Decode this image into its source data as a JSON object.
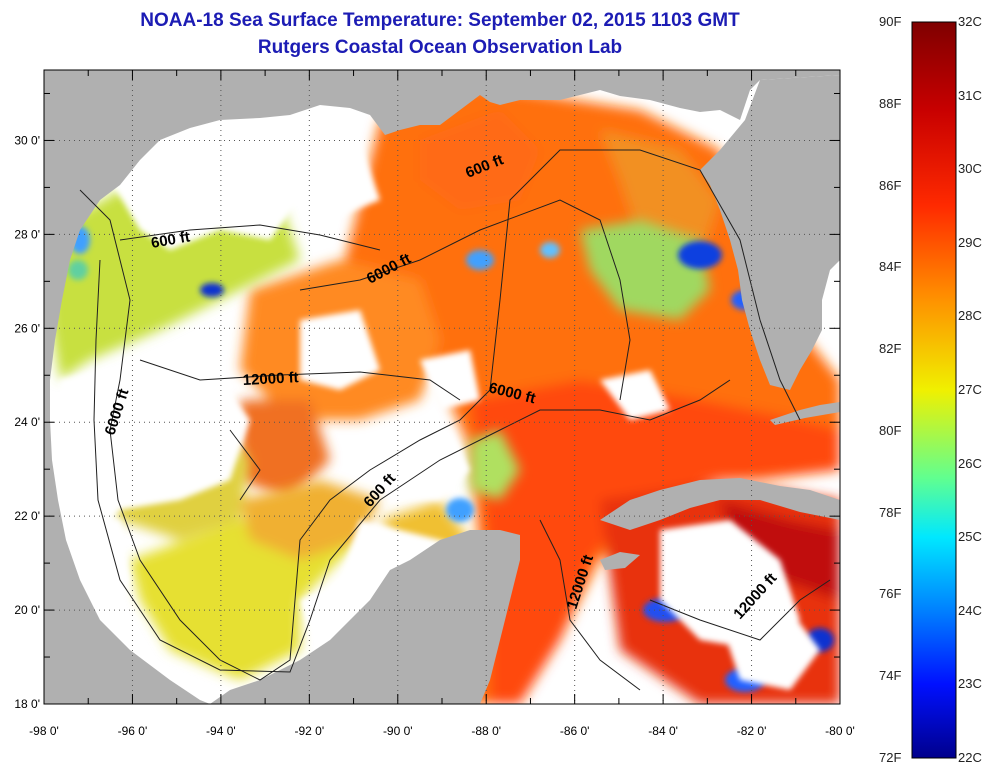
{
  "title": "NOAA-18 Sea Surface Temperature:  September 02, 2015 1103 GMT",
  "subtitle": "Rutgers Coastal Ocean Observation Lab",
  "lon_ticks": [
    "-98 0'",
    "-96 0'",
    "-94 0'",
    "-92 0'",
    "-90 0'",
    "-88 0'",
    "-86 0'",
    "-84 0'",
    "-82 0'",
    "-80 0'"
  ],
  "lat_ticks": [
    "30 0'",
    "28 0'",
    "26 0'",
    "24 0'",
    "22 0'",
    "20 0'",
    "18 0'"
  ],
  "contour_labels": [
    "600 ft",
    "600 ft",
    "6000 ft",
    "12000 ft",
    "6000 ft",
    "6000 ft",
    "600 ft",
    "12000 ft",
    "12000 ft"
  ],
  "colorbar": {
    "fahrenheit": [
      "90F",
      "88F",
      "86F",
      "84F",
      "82F",
      "80F",
      "78F",
      "76F",
      "74F",
      "72F"
    ],
    "celsius": [
      "32C",
      "31C",
      "30C",
      "29C",
      "28C",
      "27C",
      "26C",
      "25C",
      "24C",
      "23C",
      "22C"
    ]
  },
  "colors": {
    "land": "#b0b0b0",
    "cloud": "#ffffff",
    "title": "#1c1cb4"
  }
}
